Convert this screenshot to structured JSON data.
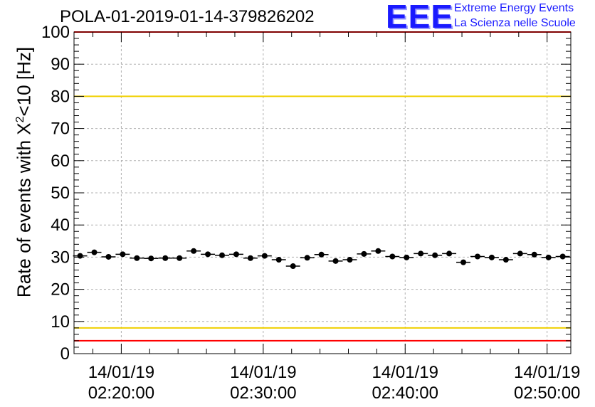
{
  "header": {
    "title": "POLA-01-2019-01-14-379826202",
    "logo_text": "EEE",
    "logo_line1": "Extreme Energy Events",
    "logo_line2": "La Scienza nelle Scuole"
  },
  "chart_data": {
    "type": "scatter",
    "title": "POLA-01-2019-01-14-379826202",
    "ylabel_prefix": "Rate of events with X",
    "ylabel_sup": "2",
    "ylabel_suffix": "<10 [Hz]",
    "ylim": [
      0,
      100
    ],
    "yticks": [
      0,
      10,
      20,
      30,
      40,
      50,
      60,
      70,
      80,
      90,
      100
    ],
    "xlim_minutes": [
      16.67,
      51.67
    ],
    "xticks": [
      {
        "minute": 20,
        "date": "14/01/19",
        "time": "02:20:00"
      },
      {
        "minute": 30,
        "date": "14/01/19",
        "time": "02:30:00"
      },
      {
        "minute": 40,
        "date": "14/01/19",
        "time": "02:40:00"
      },
      {
        "minute": 50,
        "date": "14/01/19",
        "time": "02:50:00"
      }
    ],
    "grid": true,
    "bin_width_minutes": 1,
    "x_minutes": [
      17.1,
      18.1,
      19.1,
      20.1,
      21.1,
      22.1,
      23.1,
      24.1,
      25.1,
      26.1,
      27.1,
      28.1,
      29.1,
      30.1,
      31.1,
      32.1,
      33.1,
      34.1,
      35.1,
      36.1,
      37.1,
      38.1,
      39.1,
      40.1,
      41.1,
      42.1,
      43.1,
      44.1,
      45.1,
      46.1,
      47.1,
      48.1,
      49.1,
      50.1,
      51.1
    ],
    "values": [
      30.4,
      31.5,
      30.1,
      30.9,
      29.7,
      29.6,
      29.7,
      29.7,
      31.9,
      30.9,
      30.6,
      30.9,
      29.7,
      30.4,
      29.2,
      27.2,
      29.8,
      30.8,
      28.8,
      29.2,
      31.0,
      31.9,
      30.2,
      29.9,
      31.1,
      30.6,
      31.1,
      28.4,
      30.2,
      29.9,
      29.2,
      31.1,
      30.8,
      29.9,
      30.2
    ],
    "reference_lines": [
      {
        "value": 80,
        "color": "#f0d000"
      },
      {
        "value": 8,
        "color": "#f0d000"
      },
      {
        "value": 100,
        "color": "#ff0000"
      },
      {
        "value": 4,
        "color": "#ff0000"
      }
    ],
    "marker_color": "#000000"
  }
}
